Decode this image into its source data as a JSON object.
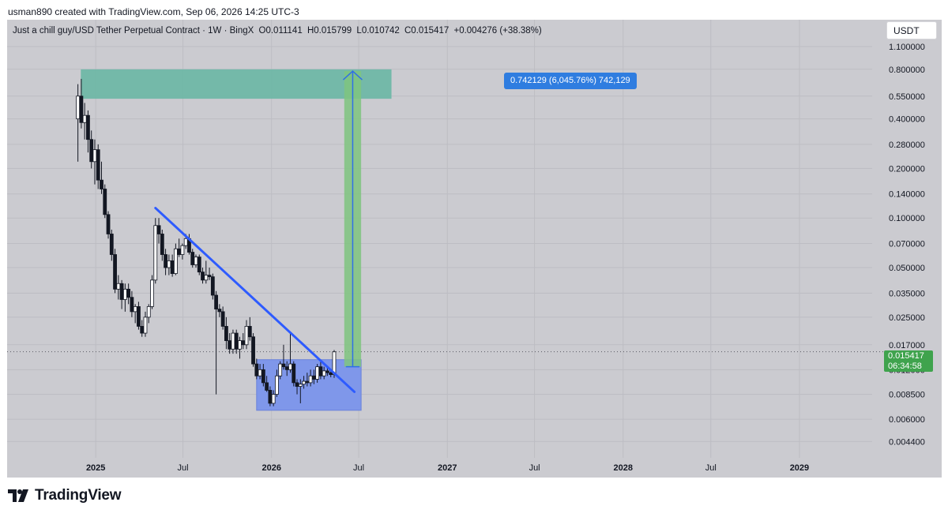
{
  "credit": "usman890 created with TradingView.com, Sep 06, 2026 14:25 UTC-3",
  "header": {
    "symbol": "Just a chill guy/USD Tether Perpetual Contract · 1W · BingX",
    "open": "O0.011141",
    "high": "H0.015799",
    "low": "L0.010742",
    "close": "C0.015417",
    "change": "+0.004276 (+38.38%)"
  },
  "currency": "USDT",
  "last_price": {
    "value": "0.015417",
    "countdown": "06:34:58",
    "color": "#3fa34d"
  },
  "measure_label": "0.742129 (6,045.76%) 742,129",
  "logo_text": "TradingView",
  "colors": {
    "background": "#cbcbd0",
    "candle_up": "#ffffff",
    "candle_down": "#131722",
    "trendline": "#2e5bff",
    "accumulation_zone": "#7f97ea",
    "target_zone": "#6fb7a6",
    "measure_fill": "#7fc47f",
    "measure_arrow": "#2f6fe8"
  },
  "chart_data": {
    "type": "candlestick",
    "timeframe": "1W",
    "y_scale": "log",
    "ylim": [
      0.0035,
      1.6
    ],
    "yticks": [
      {
        "value": 1.1,
        "label": "1.100000"
      },
      {
        "value": 0.8,
        "label": "0.800000"
      },
      {
        "value": 0.55,
        "label": "0.550000"
      },
      {
        "value": 0.4,
        "label": "0.400000"
      },
      {
        "value": 0.28,
        "label": "0.280000"
      },
      {
        "value": 0.2,
        "label": "0.200000"
      },
      {
        "value": 0.14,
        "label": "0.140000"
      },
      {
        "value": 0.1,
        "label": "0.100000"
      },
      {
        "value": 0.07,
        "label": "0.070000"
      },
      {
        "value": 0.05,
        "label": "0.050000"
      },
      {
        "value": 0.035,
        "label": "0.035000"
      },
      {
        "value": 0.025,
        "label": "0.025000"
      },
      {
        "value": 0.017,
        "label": "0.017000"
      },
      {
        "value": 0.012,
        "label": "0.012000"
      },
      {
        "value": 0.0085,
        "label": "0.008500"
      },
      {
        "value": 0.006,
        "label": "0.006000"
      },
      {
        "value": 0.0044,
        "label": "0.004400"
      }
    ],
    "xlim": [
      "2024-07-01",
      "2029-06-01"
    ],
    "xticks": [
      {
        "date": "2025-01-01",
        "label": "2025",
        "major": true
      },
      {
        "date": "2025-07-01",
        "label": "Jul",
        "major": false
      },
      {
        "date": "2026-01-01",
        "label": "2026",
        "major": true
      },
      {
        "date": "2026-07-01",
        "label": "Jul",
        "major": false
      },
      {
        "date": "2027-01-01",
        "label": "2027",
        "major": true
      },
      {
        "date": "2027-07-01",
        "label": "Jul",
        "major": false
      },
      {
        "date": "2028-01-01",
        "label": "2028",
        "major": true
      },
      {
        "date": "2028-07-01",
        "label": "Jul",
        "major": false
      },
      {
        "date": "2029-01-01",
        "label": "2029",
        "major": true
      }
    ],
    "candles": [
      [
        "2024-11-25",
        0.4,
        0.65,
        0.22,
        0.55
      ],
      [
        "2024-12-02",
        0.55,
        0.7,
        0.35,
        0.38
      ],
      [
        "2024-12-09",
        0.38,
        0.5,
        0.3,
        0.42
      ],
      [
        "2024-12-16",
        0.42,
        0.45,
        0.25,
        0.3
      ],
      [
        "2024-12-23",
        0.3,
        0.34,
        0.2,
        0.22
      ],
      [
        "2024-12-30",
        0.22,
        0.3,
        0.16,
        0.26
      ],
      [
        "2025-01-06",
        0.26,
        0.28,
        0.15,
        0.17
      ],
      [
        "2025-01-13",
        0.17,
        0.22,
        0.14,
        0.15
      ],
      [
        "2025-01-20",
        0.15,
        0.16,
        0.1,
        0.105
      ],
      [
        "2025-01-27",
        0.105,
        0.11,
        0.075,
        0.08
      ],
      [
        "2025-02-03",
        0.08,
        0.085,
        0.055,
        0.06
      ],
      [
        "2025-02-10",
        0.06,
        0.065,
        0.035,
        0.037
      ],
      [
        "2025-02-17",
        0.037,
        0.045,
        0.032,
        0.04
      ],
      [
        "2025-02-24",
        0.04,
        0.042,
        0.028,
        0.032
      ],
      [
        "2025-03-03",
        0.032,
        0.04,
        0.027,
        0.037
      ],
      [
        "2025-03-10",
        0.037,
        0.04,
        0.03,
        0.033
      ],
      [
        "2025-03-17",
        0.033,
        0.036,
        0.025,
        0.027
      ],
      [
        "2025-03-24",
        0.027,
        0.03,
        0.023,
        0.029
      ],
      [
        "2025-03-31",
        0.029,
        0.031,
        0.021,
        0.022
      ],
      [
        "2025-04-07",
        0.022,
        0.024,
        0.019,
        0.02
      ],
      [
        "2025-04-14",
        0.02,
        0.027,
        0.019,
        0.025
      ],
      [
        "2025-04-21",
        0.025,
        0.03,
        0.023,
        0.029
      ],
      [
        "2025-04-28",
        0.029,
        0.045,
        0.028,
        0.042
      ],
      [
        "2025-05-05",
        0.042,
        0.1,
        0.04,
        0.09
      ],
      [
        "2025-05-12",
        0.09,
        0.1,
        0.07,
        0.08
      ],
      [
        "2025-05-19",
        0.08,
        0.085,
        0.055,
        0.06
      ],
      [
        "2025-05-26",
        0.06,
        0.065,
        0.045,
        0.05
      ],
      [
        "2025-06-02",
        0.05,
        0.06,
        0.045,
        0.055
      ],
      [
        "2025-06-09",
        0.055,
        0.06,
        0.044,
        0.046
      ],
      [
        "2025-06-16",
        0.046,
        0.07,
        0.045,
        0.065
      ],
      [
        "2025-06-23",
        0.065,
        0.075,
        0.058,
        0.06
      ],
      [
        "2025-06-30",
        0.06,
        0.07,
        0.056,
        0.068
      ],
      [
        "2025-07-07",
        0.068,
        0.08,
        0.065,
        0.075
      ],
      [
        "2025-07-14",
        0.075,
        0.08,
        0.06,
        0.062
      ],
      [
        "2025-07-21",
        0.062,
        0.065,
        0.05,
        0.052
      ],
      [
        "2025-07-28",
        0.052,
        0.06,
        0.05,
        0.058
      ],
      [
        "2025-08-04",
        0.058,
        0.06,
        0.045,
        0.047
      ],
      [
        "2025-08-11",
        0.047,
        0.05,
        0.04,
        0.042
      ],
      [
        "2025-08-18",
        0.042,
        0.055,
        0.04,
        0.045
      ],
      [
        "2025-08-25",
        0.045,
        0.05,
        0.042,
        0.044
      ],
      [
        "2025-09-01",
        0.044,
        0.046,
        0.032,
        0.034
      ],
      [
        "2025-09-08",
        0.034,
        0.036,
        0.0085,
        0.028
      ],
      [
        "2025-09-15",
        0.028,
        0.03,
        0.025,
        0.027
      ],
      [
        "2025-09-22",
        0.027,
        0.029,
        0.021,
        0.022
      ],
      [
        "2025-09-29",
        0.022,
        0.025,
        0.016,
        0.018
      ],
      [
        "2025-10-06",
        0.018,
        0.02,
        0.015,
        0.016
      ],
      [
        "2025-10-13",
        0.016,
        0.021,
        0.015,
        0.02
      ],
      [
        "2025-10-20",
        0.02,
        0.021,
        0.015,
        0.016
      ],
      [
        "2025-10-27",
        0.016,
        0.019,
        0.014,
        0.018
      ],
      [
        "2025-11-03",
        0.018,
        0.02,
        0.016,
        0.017
      ],
      [
        "2025-11-10",
        0.017,
        0.024,
        0.016,
        0.022
      ],
      [
        "2025-11-17",
        0.022,
        0.025,
        0.018,
        0.019
      ],
      [
        "2025-11-24",
        0.019,
        0.02,
        0.0125,
        0.013
      ],
      [
        "2025-12-01",
        0.013,
        0.014,
        0.0105,
        0.011
      ],
      [
        "2025-12-08",
        0.011,
        0.013,
        0.0105,
        0.012
      ],
      [
        "2025-12-15",
        0.012,
        0.013,
        0.0095,
        0.01
      ],
      [
        "2025-12-22",
        0.01,
        0.011,
        0.0088,
        0.009
      ],
      [
        "2025-12-29",
        0.009,
        0.0095,
        0.0072,
        0.0075
      ],
      [
        "2026-01-05",
        0.0075,
        0.009,
        0.0072,
        0.0085
      ],
      [
        "2026-01-12",
        0.0085,
        0.012,
        0.0082,
        0.011
      ],
      [
        "2026-01-19",
        0.011,
        0.0135,
        0.0105,
        0.013
      ],
      [
        "2026-01-26",
        0.013,
        0.017,
        0.012,
        0.0125
      ],
      [
        "2026-02-02",
        0.0125,
        0.0135,
        0.011,
        0.012
      ],
      [
        "2026-02-09",
        0.012,
        0.02,
        0.0115,
        0.013
      ],
      [
        "2026-02-16",
        0.013,
        0.0135,
        0.0095,
        0.01
      ],
      [
        "2026-02-23",
        0.01,
        0.0105,
        0.0085,
        0.0095
      ],
      [
        "2026-03-02",
        0.0095,
        0.0105,
        0.0075,
        0.0098
      ],
      [
        "2026-03-09",
        0.0098,
        0.011,
        0.0092,
        0.0102
      ],
      [
        "2026-03-16",
        0.0102,
        0.0115,
        0.0095,
        0.01
      ],
      [
        "2026-03-23",
        0.01,
        0.012,
        0.0095,
        0.011
      ],
      [
        "2026-03-30",
        0.011,
        0.012,
        0.0098,
        0.0105
      ],
      [
        "2026-04-06",
        0.0105,
        0.013,
        0.01,
        0.0125
      ],
      [
        "2026-04-13",
        0.0125,
        0.0135,
        0.0105,
        0.011
      ],
      [
        "2026-04-20",
        0.011,
        0.0125,
        0.0105,
        0.0118
      ],
      [
        "2026-04-27",
        0.0118,
        0.0125,
        0.011,
        0.0115
      ],
      [
        "2026-05-04",
        0.0115,
        0.012,
        0.0108,
        0.0112
      ],
      [
        "2026-05-11",
        0.0112,
        0.0158,
        0.0107,
        0.0154
      ]
    ],
    "trendline": {
      "from": [
        "2025-05-05",
        0.115
      ],
      "to": [
        "2026-06-22",
        0.0088
      ]
    },
    "accumulation_zone": {
      "from": "2025-12-01",
      "to": "2026-07-06",
      "high": 0.0138,
      "low": 0.0068
    },
    "target_zone": {
      "from": "2024-12-01",
      "to": "2026-09-07",
      "high": 0.8,
      "low": 0.53
    },
    "measure": {
      "from_date": "2026-06-01",
      "to_date": "2026-07-06",
      "start": 0.0125,
      "end": 0.78
    }
  }
}
